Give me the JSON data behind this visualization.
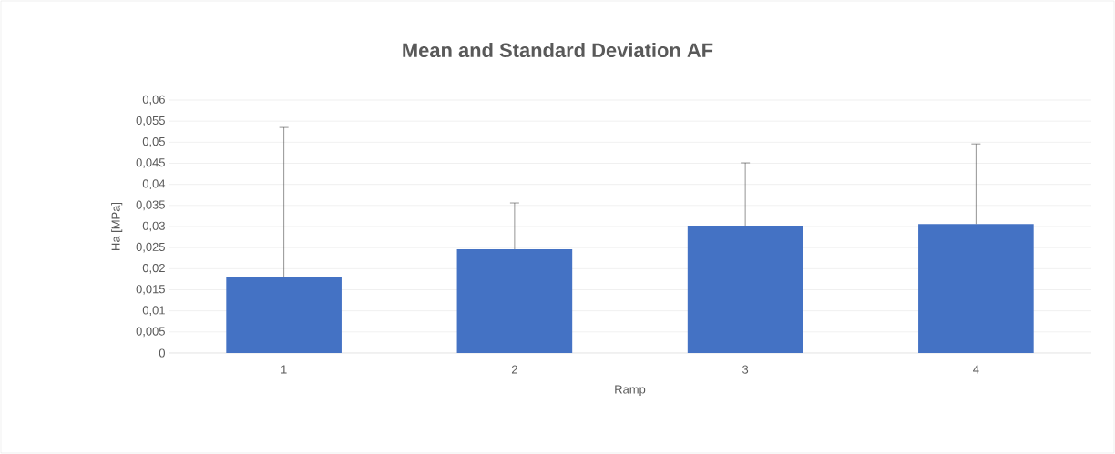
{
  "chart_data": {
    "type": "bar",
    "title": "Mean and Standard Deviation AF",
    "xlabel": "Ramp",
    "ylabel": "Ha [MPa]",
    "categories": [
      "1",
      "2",
      "3",
      "4"
    ],
    "values": [
      0.0179,
      0.0246,
      0.0302,
      0.0306
    ],
    "errors": [
      [
        0.0179,
        0.0535
      ],
      [
        0.0246,
        0.0356
      ],
      [
        0.0302,
        0.0451
      ],
      [
        0.0306,
        0.0496
      ]
    ],
    "color": "#4472c4",
    "ylim": [
      0,
      0.06
    ],
    "yticks": [
      {
        "value": 0,
        "label": "0"
      },
      {
        "value": 0.005,
        "label": "0,005"
      },
      {
        "value": 0.01,
        "label": "0,01"
      },
      {
        "value": 0.015,
        "label": "0,015"
      },
      {
        "value": 0.02,
        "label": "0,02"
      },
      {
        "value": 0.025,
        "label": "0,025"
      },
      {
        "value": 0.03,
        "label": "0,03"
      },
      {
        "value": 0.035,
        "label": "0,035"
      },
      {
        "value": 0.04,
        "label": "0,04"
      },
      {
        "value": 0.045,
        "label": "0,045"
      },
      {
        "value": 0.05,
        "label": "0,05"
      },
      {
        "value": 0.055,
        "label": "0,055"
      },
      {
        "value": 0.06,
        "label": "0,06"
      }
    ],
    "grid": "y"
  }
}
